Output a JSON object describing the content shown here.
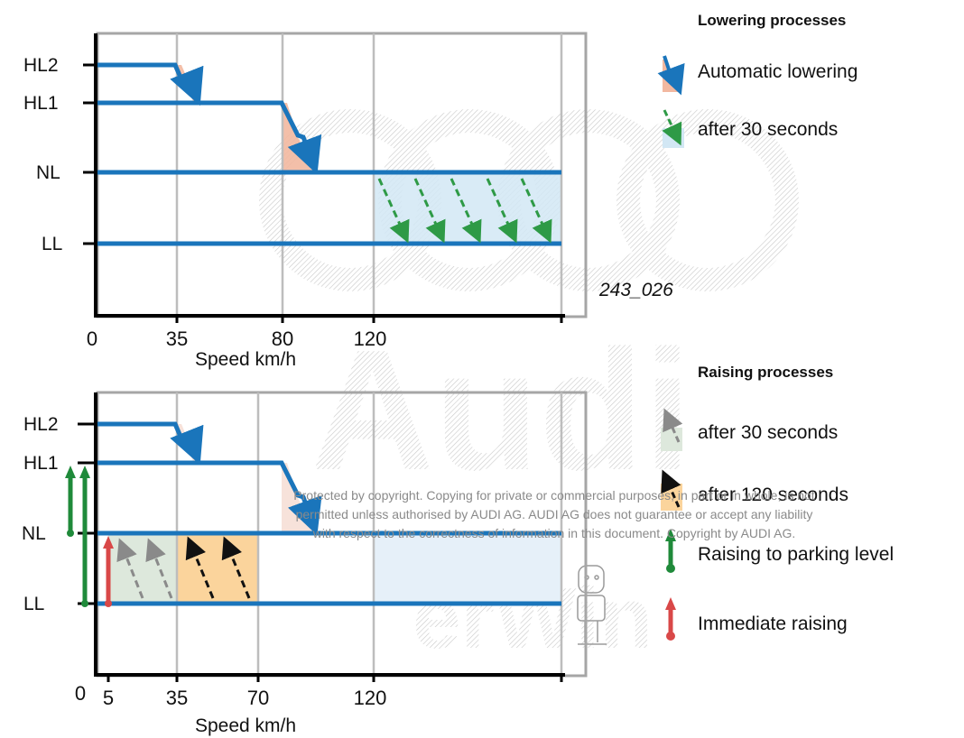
{
  "lowering_chart": {
    "levels": [
      "HL2",
      "HL1",
      "NL",
      "LL"
    ],
    "x_ticks": [
      "0",
      "35",
      "80",
      "120"
    ],
    "axis_title": "Speed km/h",
    "figure_id": "243_026"
  },
  "raising_chart": {
    "levels": [
      "HL2",
      "HL1",
      "NL",
      "LL"
    ],
    "x_ticks": [
      "0",
      "5",
      "35",
      "70",
      "120"
    ],
    "axis_title": "Speed km/h"
  },
  "legend_lowering": {
    "title": "Lowering processes",
    "items": [
      {
        "label": "Automatic lowering",
        "icon": "automatic-lowering-icon"
      },
      {
        "label": "after 30 seconds",
        "icon": "green-dashed-arrow-icon"
      }
    ]
  },
  "legend_raising": {
    "title": "Raising processes",
    "items": [
      {
        "label": "after 30 seconds",
        "icon": "grey-dashed-arrow-icon"
      },
      {
        "label": "after 120 seconds",
        "icon": "black-dashed-arrow-icon"
      },
      {
        "label": "Raising to parking level",
        "icon": "green-arrow-icon"
      },
      {
        "label": "Immediate raising",
        "icon": "red-arrow-icon"
      }
    ]
  },
  "watermark": {
    "lines": [
      "Protected by copyright. Copying for private or commercial purposes, in part or in whole, is not",
      "permitted unless authorised by AUDI AG. AUDI AG does not guarantee or accept any liability",
      "with respect to the correctness of information in this document. Copyright by AUDI AG."
    ],
    "logo_text": "Audi",
    "mark_text": "erWin"
  },
  "colors": {
    "level_line": "#1a75bb",
    "frame": "#a6a6a6",
    "lowering_fill": "#f2b8a0",
    "lowering_30s_fill": "#d2e7f4",
    "raising_30s_fill": "#dde8dc",
    "raising_120s_fill": "#fbd49c",
    "raising_unused_fill": "#e6f0f9",
    "green_arrow": "#1f8a3a",
    "red_arrow": "#d94848",
    "green_dashed": "#2e9a46",
    "grey_dashed": "#8a8a8a",
    "black_dashed": "#111111"
  }
}
